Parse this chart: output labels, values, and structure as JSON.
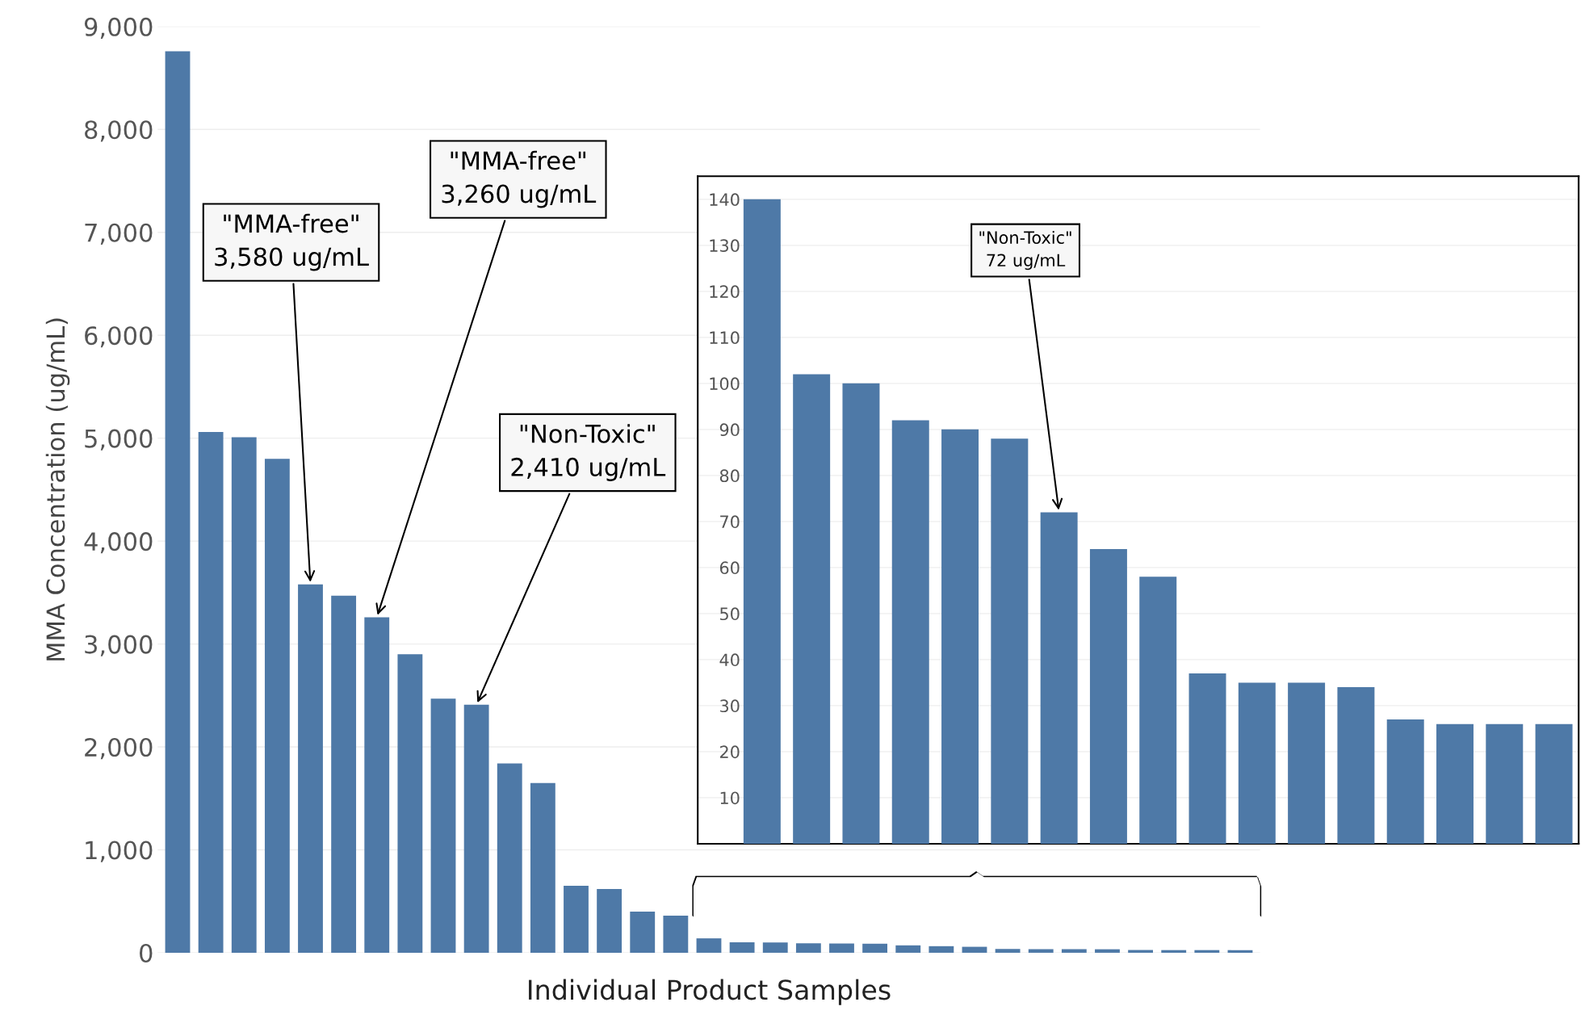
{
  "chart_data": [
    {
      "type": "bar",
      "xlabel": "Individual Product Samples",
      "ylabel": "MMA Concentration (ug/mL)",
      "categories": [
        null,
        null,
        null,
        null,
        null,
        null,
        null,
        null,
        null,
        null,
        null,
        null,
        null,
        null,
        null,
        null,
        null,
        null,
        null,
        null,
        null,
        null,
        null,
        null,
        null,
        null,
        null,
        null,
        null,
        null,
        null,
        null,
        null
      ],
      "values": [
        8760,
        5060,
        5010,
        4800,
        3580,
        3470,
        3260,
        2900,
        2470,
        2410,
        1840,
        1650,
        650,
        620,
        400,
        360,
        140,
        102,
        100,
        92,
        90,
        88,
        72,
        64,
        58,
        37,
        35,
        35,
        34,
        27,
        26,
        26,
        26
      ],
      "color": "#4e79a7",
      "ylim": [
        0,
        9000
      ],
      "yticks": [
        {
          "value": 0,
          "label": "0"
        },
        {
          "value": 1000,
          "label": "1,000"
        },
        {
          "value": 2000,
          "label": "2,000"
        },
        {
          "value": 3000,
          "label": "3,000"
        },
        {
          "value": 4000,
          "label": "4,000"
        },
        {
          "value": 5000,
          "label": "5,000"
        },
        {
          "value": 6000,
          "label": "6,000"
        },
        {
          "value": 7000,
          "label": "7,000"
        },
        {
          "value": 8000,
          "label": "8,000"
        },
        {
          "value": 9000,
          "label": "9,000"
        }
      ],
      "grid": "y",
      "annotations": [
        "\"MMA-free\"\n3,580 ug/mL",
        "\"MMA-free\"\n3,260 ug/mL",
        "\"Non-Toxic\"\n2,410 ug/mL"
      ]
    },
    {
      "type": "bar",
      "categories": [
        null,
        null,
        null,
        null,
        null,
        null,
        null,
        null,
        null,
        null,
        null,
        null,
        null,
        null,
        null,
        null,
        null
      ],
      "values": [
        140,
        102,
        100,
        92,
        90,
        88,
        72,
        64,
        58,
        37,
        35,
        35,
        34,
        27,
        26,
        26,
        26
      ],
      "color": "#4e79a7",
      "ylim": [
        0,
        145
      ],
      "yticks": [
        10,
        20,
        30,
        40,
        50,
        60,
        70,
        80,
        90,
        100,
        110,
        120,
        130,
        140
      ],
      "grid": "y",
      "annotations": [
        "\"Non-Toxic\"\n72 ug/mL"
      ]
    }
  ]
}
